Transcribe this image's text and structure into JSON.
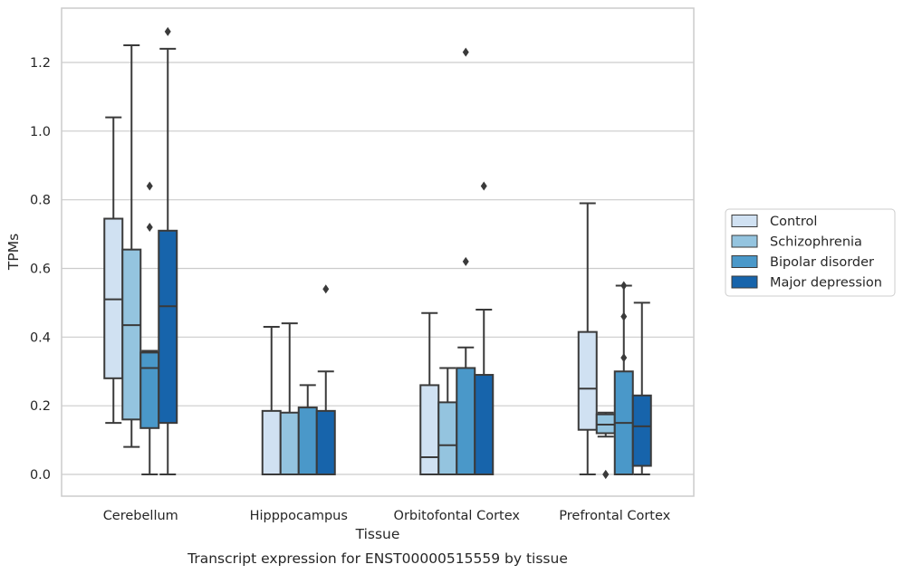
{
  "chart_data": {
    "type": "box",
    "title": "",
    "caption": "Transcript expression for ENST00000515559 by tissue",
    "xlabel": "Tissue",
    "ylabel": "TPMs",
    "ylim": [
      -0.06,
      1.36
    ],
    "yticks": [
      0.0,
      0.2,
      0.4,
      0.6,
      0.8,
      1.0,
      1.2
    ],
    "ytick_labels": [
      "0.0",
      "0.2",
      "0.4",
      "0.6",
      "0.8",
      "1.0",
      "1.2"
    ],
    "grid": "horizontal",
    "legend_position": "right",
    "categories": [
      "Cerebellum",
      "Hipppocampus",
      "Orbitofontal Cortex",
      "Prefrontal Cortex"
    ],
    "series": [
      {
        "name": "Control",
        "color": "#d0e1f2",
        "boxes": [
          {
            "whislo": 0.15,
            "q1": 0.28,
            "med": 0.51,
            "q3": 0.745,
            "whishi": 1.04,
            "fliers": []
          },
          {
            "whislo": 0.0,
            "q1": 0.0,
            "med": 0.0,
            "q3": 0.185,
            "whishi": 0.43,
            "fliers": []
          },
          {
            "whislo": 0.0,
            "q1": 0.0,
            "med": 0.05,
            "q3": 0.26,
            "whishi": 0.47,
            "fliers": []
          },
          {
            "whislo": 0.0,
            "q1": 0.13,
            "med": 0.25,
            "q3": 0.415,
            "whishi": 0.79,
            "fliers": []
          }
        ]
      },
      {
        "name": "Schizophrenia",
        "color": "#94c4df",
        "boxes": [
          {
            "whislo": 0.08,
            "q1": 0.16,
            "med": 0.435,
            "q3": 0.655,
            "whishi": 1.25,
            "fliers": []
          },
          {
            "whislo": 0.0,
            "q1": 0.0,
            "med": 0.0,
            "q3": 0.18,
            "whishi": 0.44,
            "fliers": []
          },
          {
            "whislo": 0.0,
            "q1": 0.0,
            "med": 0.085,
            "q3": 0.21,
            "whishi": 0.31,
            "fliers": []
          },
          {
            "whislo": 0.11,
            "q1": 0.12,
            "med": 0.145,
            "q3": 0.175,
            "whishi": 0.18,
            "fliers": [
              0.0,
              0.0
            ]
          }
        ]
      },
      {
        "name": "Bipolar disorder",
        "color": "#4a98c9",
        "boxes": [
          {
            "whislo": 0.0,
            "q1": 0.135,
            "med": 0.31,
            "q3": 0.355,
            "whishi": 0.36,
            "fliers": [
              0.84,
              0.72
            ]
          },
          {
            "whislo": 0.0,
            "q1": 0.0,
            "med": 0.0,
            "q3": 0.195,
            "whishi": 0.26,
            "fliers": []
          },
          {
            "whislo": 0.0,
            "q1": 0.0,
            "med": 0.0,
            "q3": 0.31,
            "whishi": 0.37,
            "fliers": [
              1.23,
              0.62
            ]
          },
          {
            "whislo": 0.0,
            "q1": 0.0,
            "med": 0.15,
            "q3": 0.3,
            "whishi": 0.55,
            "fliers": [
              0.55,
              0.46,
              0.34
            ]
          }
        ]
      },
      {
        "name": "Major depression",
        "color": "#1764ab",
        "boxes": [
          {
            "whislo": 0.0,
            "q1": 0.15,
            "med": 0.49,
            "q3": 0.71,
            "whishi": 1.24,
            "fliers": [
              1.29
            ]
          },
          {
            "whislo": 0.0,
            "q1": 0.0,
            "med": 0.0,
            "q3": 0.185,
            "whishi": 0.3,
            "fliers": [
              0.54
            ]
          },
          {
            "whislo": 0.0,
            "q1": 0.0,
            "med": 0.0,
            "q3": 0.29,
            "whishi": 0.48,
            "fliers": [
              0.84
            ]
          },
          {
            "whislo": 0.0,
            "q1": 0.025,
            "med": 0.14,
            "q3": 0.23,
            "whishi": 0.5,
            "fliers": []
          }
        ]
      }
    ]
  }
}
